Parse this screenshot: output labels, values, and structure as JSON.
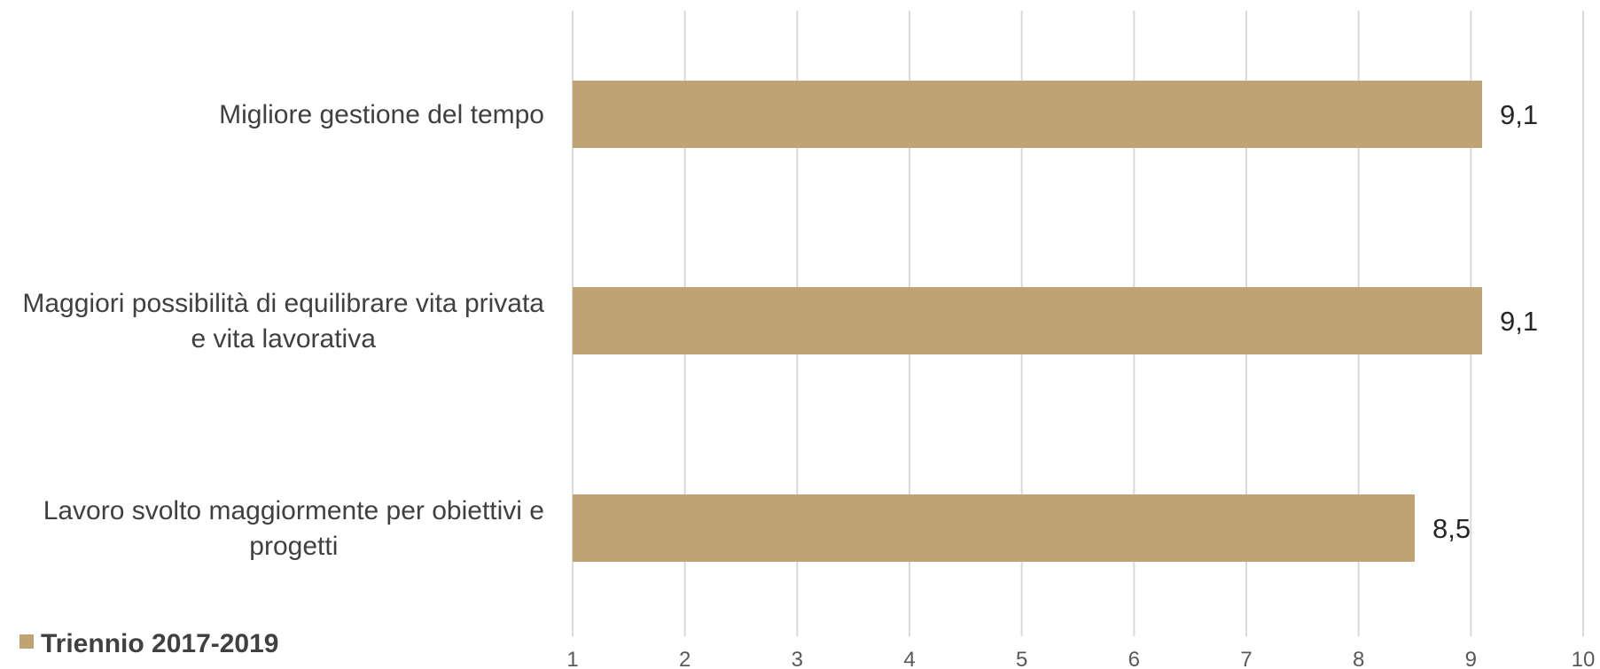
{
  "chart_data": {
    "type": "bar",
    "orientation": "horizontal",
    "categories": [
      [
        "Migliore gestione del tempo"
      ],
      [
        "Maggiori possibilità di equilibrare vita privata",
        "e vita lavorativa"
      ],
      [
        "Lavoro svolto maggiormente per obiettivi e",
        "progetti"
      ]
    ],
    "series": [
      {
        "name": "Triennio 2017-2019",
        "color": "#bfa375",
        "values": [
          9.1,
          9.1,
          8.5
        ],
        "value_labels": [
          "9,1",
          "9,1",
          "8,5"
        ]
      }
    ],
    "xlim": [
      1,
      10
    ],
    "x_ticks": [
      1,
      2,
      3,
      4,
      5,
      6,
      7,
      8,
      9,
      10
    ],
    "grid": true,
    "grid_color": "#d9d9d9",
    "legend_position": "bottom-left",
    "title": "",
    "xlabel": "",
    "ylabel": ""
  }
}
